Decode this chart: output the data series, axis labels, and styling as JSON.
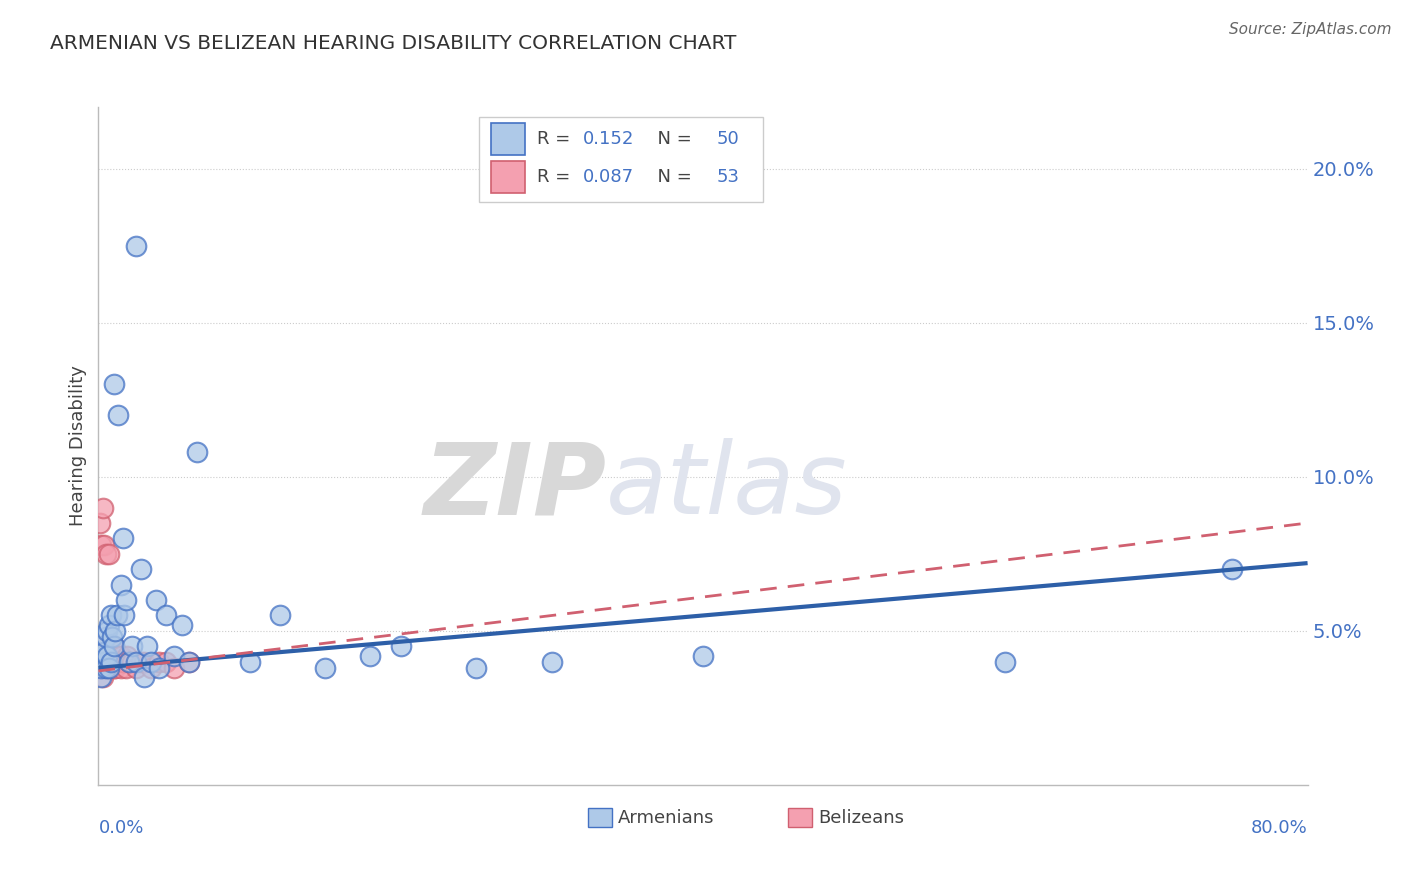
{
  "title": "ARMENIAN VS BELIZEAN HEARING DISABILITY CORRELATION CHART",
  "source": "Source: ZipAtlas.com",
  "ylabel": "Hearing Disability",
  "legend_label1": "Armenians",
  "legend_label2": "Belizeans",
  "R1": 0.152,
  "N1": 50,
  "R2": 0.087,
  "N2": 53,
  "color_armenian_face": "#aec9e8",
  "color_armenian_edge": "#4472c4",
  "color_belizean_face": "#f4a0b0",
  "color_belizean_edge": "#d06070",
  "color_line_armenian": "#2d5fa8",
  "color_line_belizean": "#d06070",
  "xmin": 0.0,
  "xmax": 0.8,
  "ymin": 0.0,
  "ymax": 0.22,
  "yticks": [
    0.05,
    0.1,
    0.15,
    0.2
  ],
  "ytick_labels": [
    "5.0%",
    "10.0%",
    "15.0%",
    "20.0%"
  ],
  "armenian_x": [
    0.001,
    0.002,
    0.002,
    0.003,
    0.003,
    0.004,
    0.004,
    0.005,
    0.005,
    0.006,
    0.006,
    0.007,
    0.007,
    0.008,
    0.008,
    0.009,
    0.01,
    0.01,
    0.011,
    0.012,
    0.013,
    0.015,
    0.016,
    0.017,
    0.018,
    0.02,
    0.022,
    0.025,
    0.025,
    0.028,
    0.03,
    0.032,
    0.035,
    0.038,
    0.04,
    0.045,
    0.05,
    0.055,
    0.06,
    0.065,
    0.1,
    0.12,
    0.15,
    0.18,
    0.2,
    0.25,
    0.3,
    0.4,
    0.6,
    0.75
  ],
  "armenian_y": [
    0.04,
    0.035,
    0.038,
    0.042,
    0.045,
    0.04,
    0.043,
    0.048,
    0.038,
    0.05,
    0.042,
    0.052,
    0.038,
    0.055,
    0.04,
    0.048,
    0.045,
    0.13,
    0.05,
    0.055,
    0.12,
    0.065,
    0.08,
    0.055,
    0.06,
    0.04,
    0.045,
    0.04,
    0.175,
    0.07,
    0.035,
    0.045,
    0.04,
    0.06,
    0.038,
    0.055,
    0.042,
    0.052,
    0.04,
    0.108,
    0.04,
    0.055,
    0.038,
    0.042,
    0.045,
    0.038,
    0.04,
    0.042,
    0.04,
    0.07
  ],
  "belizean_x": [
    0.001,
    0.001,
    0.001,
    0.002,
    0.002,
    0.002,
    0.002,
    0.003,
    0.003,
    0.003,
    0.003,
    0.004,
    0.004,
    0.004,
    0.005,
    0.005,
    0.005,
    0.006,
    0.006,
    0.006,
    0.007,
    0.007,
    0.007,
    0.008,
    0.008,
    0.008,
    0.009,
    0.009,
    0.01,
    0.01,
    0.01,
    0.011,
    0.011,
    0.012,
    0.012,
    0.013,
    0.014,
    0.015,
    0.015,
    0.016,
    0.017,
    0.018,
    0.019,
    0.02,
    0.022,
    0.025,
    0.028,
    0.03,
    0.035,
    0.04,
    0.045,
    0.05,
    0.06
  ],
  "belizean_y": [
    0.042,
    0.085,
    0.04,
    0.038,
    0.078,
    0.042,
    0.04,
    0.09,
    0.038,
    0.042,
    0.035,
    0.045,
    0.04,
    0.078,
    0.04,
    0.042,
    0.075,
    0.04,
    0.038,
    0.042,
    0.04,
    0.075,
    0.038,
    0.04,
    0.042,
    0.04,
    0.04,
    0.042,
    0.038,
    0.045,
    0.04,
    0.042,
    0.038,
    0.042,
    0.04,
    0.04,
    0.04,
    0.038,
    0.042,
    0.04,
    0.04,
    0.038,
    0.042,
    0.04,
    0.04,
    0.038,
    0.04,
    0.04,
    0.038,
    0.04,
    0.04,
    0.038,
    0.04
  ],
  "watermark_zip": "ZIP",
  "watermark_atlas": "atlas",
  "background_color": "#ffffff",
  "grid_color": "#cccccc",
  "tick_label_color": "#4472c4",
  "title_color": "#333333",
  "source_color": "#666666"
}
